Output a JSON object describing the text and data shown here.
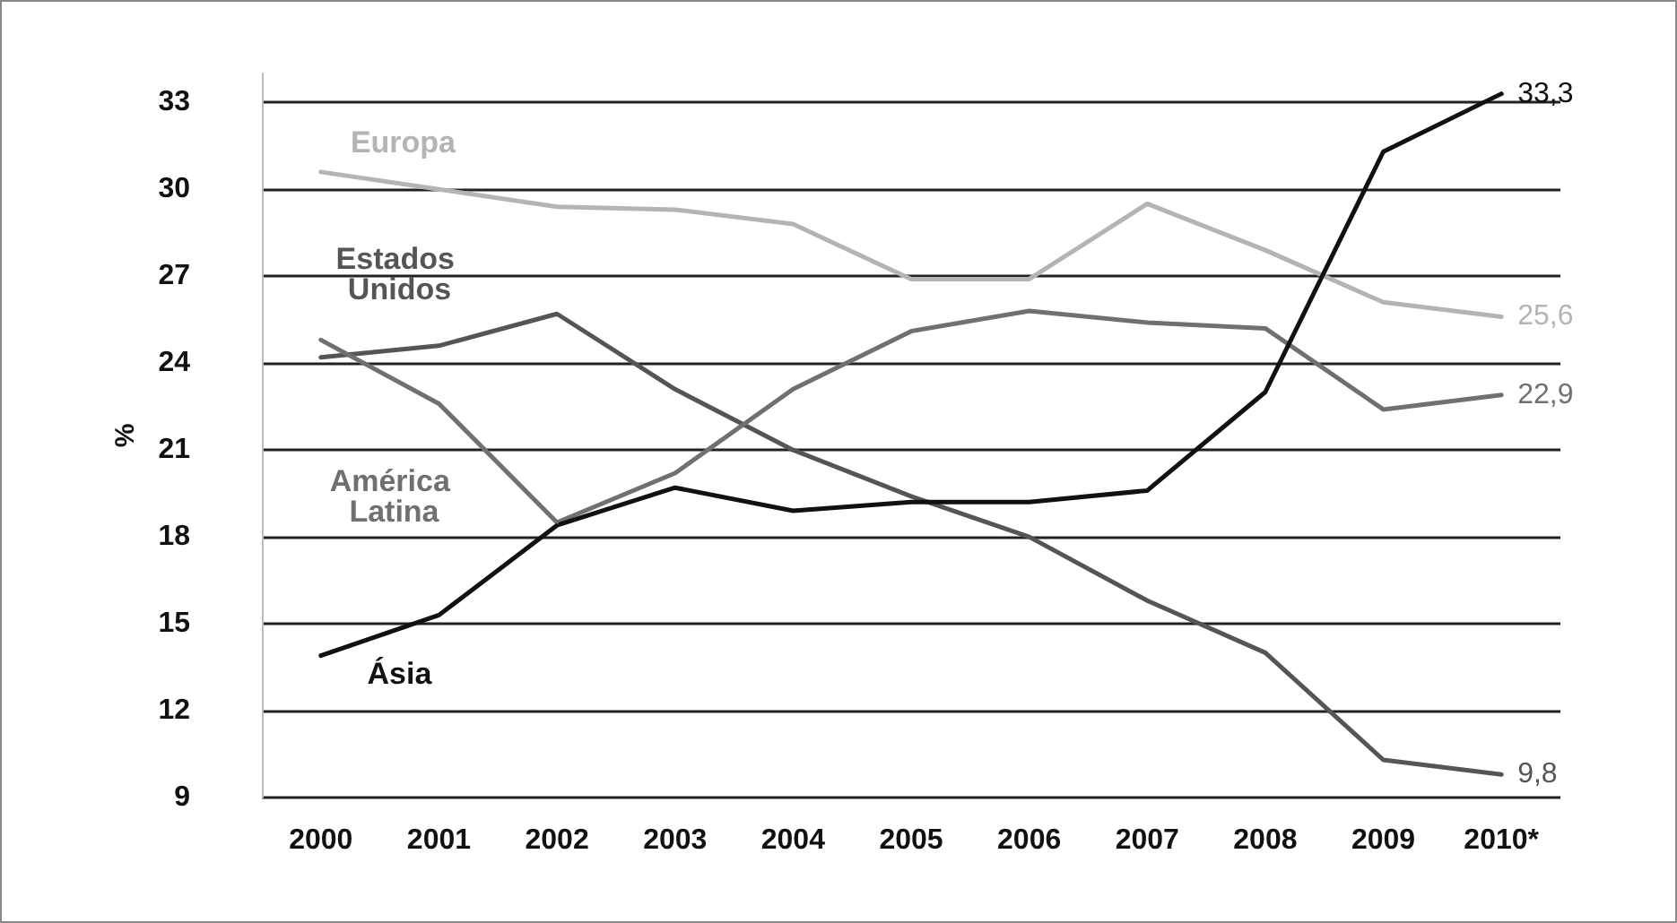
{
  "chart_data": {
    "type": "line",
    "ylabel": "%",
    "categories": [
      "2000",
      "2001",
      "2002",
      "2003",
      "2004",
      "2005",
      "2006",
      "2007",
      "2008",
      "2009",
      "2010*"
    ],
    "series": [
      {
        "name": "Europa",
        "color": "#b4b4b4",
        "values": [
          30.6,
          30.0,
          29.4,
          29.3,
          28.8,
          26.9,
          26.9,
          29.5,
          27.9,
          26.1,
          25.6
        ],
        "value_labels": [
          null,
          null,
          null,
          null,
          null,
          null,
          null,
          null,
          null,
          null,
          "25,6"
        ]
      },
      {
        "name": "Estados Unidos",
        "color": "#555555",
        "values": [
          24.2,
          24.6,
          25.7,
          23.1,
          21.0,
          19.4,
          18.0,
          15.8,
          14.0,
          10.3,
          9.8
        ],
        "value_labels": [
          null,
          null,
          null,
          null,
          null,
          null,
          null,
          null,
          null,
          null,
          "9,8"
        ]
      },
      {
        "name": "América Latina",
        "color": "#707070",
        "values": [
          24.8,
          22.6,
          18.5,
          20.2,
          23.1,
          25.1,
          25.8,
          25.4,
          25.2,
          22.4,
          22.9
        ],
        "value_labels": [
          null,
          null,
          null,
          null,
          null,
          null,
          null,
          null,
          null,
          null,
          "22,9"
        ]
      },
      {
        "name": "Ásia",
        "color": "#111111",
        "values": [
          13.9,
          15.3,
          18.4,
          19.7,
          18.9,
          19.2,
          19.2,
          19.6,
          23.0,
          31.3,
          33.3
        ],
        "value_labels": [
          null,
          null,
          null,
          null,
          null,
          null,
          null,
          null,
          null,
          null,
          "33,3"
        ]
      }
    ],
    "ylim": [
      9,
      34
    ],
    "yticks": [
      9,
      12,
      15,
      18,
      21,
      24,
      27,
      30,
      33
    ],
    "grid": "y",
    "marker": "none",
    "line_style": "solid"
  }
}
